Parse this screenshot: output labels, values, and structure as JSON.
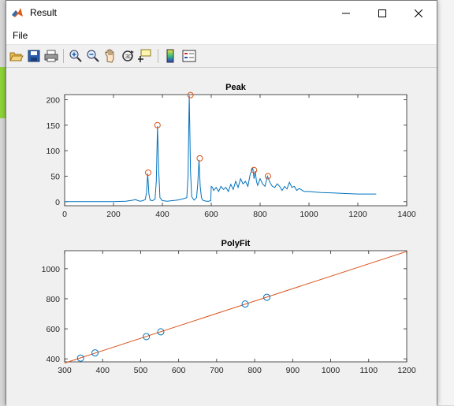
{
  "window": {
    "title": "Result"
  },
  "menu": {
    "file": "File"
  },
  "toolbar": {
    "items": [
      "open-icon",
      "save-icon",
      "print-icon",
      "zoom-in-icon",
      "zoom-out-icon",
      "pan-icon",
      "rotate-3d-icon",
      "data-cursor-icon",
      "colorbar-icon",
      "legend-icon"
    ]
  },
  "chart_data": [
    {
      "type": "line",
      "title": "Peak",
      "xlabel": "",
      "ylabel": "",
      "xlim": [
        0,
        1400
      ],
      "ylim": [
        -8,
        210
      ],
      "xticks": [
        0,
        200,
        400,
        600,
        800,
        1000,
        1200,
        1400
      ],
      "yticks": [
        0,
        50,
        100,
        150,
        200
      ],
      "grid": false,
      "series": [
        {
          "name": "",
          "color": "#0072BD",
          "x": [
            0,
            50,
            100,
            150,
            200,
            250,
            280,
            290,
            300,
            310,
            320,
            330,
            335,
            340,
            345,
            350,
            360,
            370,
            375,
            380,
            385,
            390,
            400,
            420,
            440,
            460,
            480,
            500,
            505,
            510,
            515,
            520,
            525,
            530,
            540,
            545,
            550,
            555,
            560,
            565,
            570,
            580,
            590,
            598,
            600,
            605,
            610,
            620,
            630,
            640,
            650,
            660,
            670,
            680,
            690,
            700,
            710,
            720,
            730,
            740,
            750,
            760,
            770,
            775,
            780,
            785,
            790,
            800,
            810,
            820,
            830,
            840,
            850,
            860,
            870,
            880,
            890,
            900,
            910,
            920,
            930,
            940,
            950,
            960,
            980,
            1000,
            1050,
            1100,
            1150,
            1200,
            1250,
            1275
          ],
          "y": [
            0,
            0,
            0,
            0,
            0,
            1,
            3,
            4,
            2,
            1,
            2,
            4,
            18,
            55,
            15,
            3,
            2,
            5,
            40,
            148,
            60,
            8,
            2,
            1,
            2,
            3,
            5,
            8,
            50,
            208,
            60,
            10,
            6,
            3,
            8,
            35,
            82,
            30,
            8,
            3,
            2,
            1,
            1,
            2,
            30,
            28,
            22,
            28,
            20,
            30,
            24,
            28,
            20,
            34,
            24,
            40,
            28,
            45,
            35,
            40,
            30,
            55,
            66,
            45,
            60,
            40,
            32,
            45,
            35,
            30,
            50,
            38,
            30,
            28,
            35,
            30,
            22,
            30,
            25,
            38,
            28,
            30,
            22,
            26,
            20,
            20,
            18,
            17,
            16,
            15,
            15,
            15
          ]
        }
      ],
      "peaks": {
        "x": [
          342,
          380,
          515,
          553,
          775,
          832
        ],
        "y": [
          57,
          150,
          209,
          85,
          62,
          50
        ],
        "color": "#D95319"
      }
    },
    {
      "type": "scatter",
      "title": "PolyFit",
      "xlabel": "",
      "ylabel": "",
      "xlim": [
        300,
        1200
      ],
      "ylim": [
        380,
        1120
      ],
      "xticks": [
        300,
        400,
        500,
        600,
        700,
        800,
        900,
        1000,
        1100,
        1200
      ],
      "yticks": [
        400,
        600,
        800,
        1000
      ],
      "grid": false,
      "series": [
        {
          "name": "",
          "color": "#0072BD",
          "x": [
            342,
            380,
            515,
            553,
            775,
            832
          ],
          "y": [
            405,
            440,
            548,
            580,
            765,
            810
          ]
        }
      ],
      "fit_line": {
        "color": "#D95319",
        "x": [
          300,
          1200
        ],
        "y": [
          372,
          1115
        ]
      }
    }
  ]
}
